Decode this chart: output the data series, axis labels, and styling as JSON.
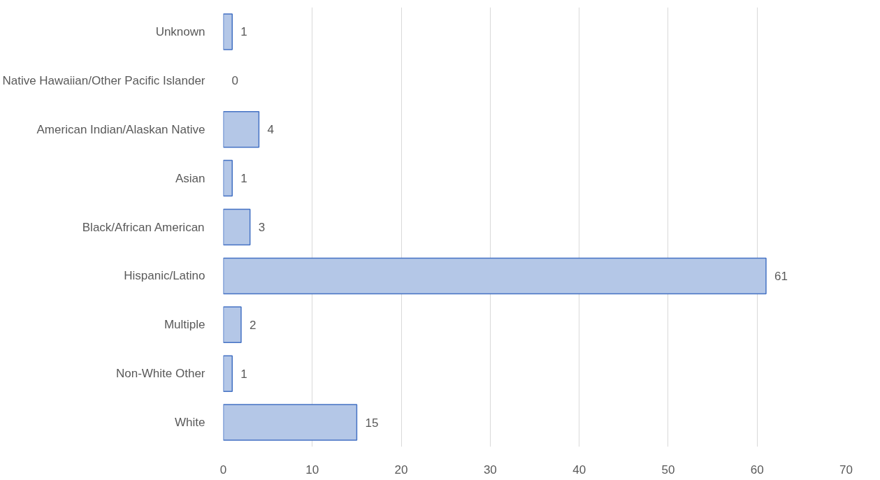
{
  "chart_data": {
    "type": "bar",
    "orientation": "horizontal",
    "categories": [
      "Unknown",
      "Native Hawaiian/Other Pacific Islander",
      "American Indian/Alaskan Native",
      "Asian",
      "Black/African American",
      "Hispanic/Latino",
      "Multiple",
      "Non-White Other",
      "White"
    ],
    "values": [
      1,
      0,
      4,
      1,
      3,
      61,
      2,
      1,
      15
    ],
    "color": "#b4c7e7",
    "xlim": [
      0,
      70
    ],
    "xticks": [
      0,
      10,
      20,
      30,
      40,
      50,
      60,
      70
    ],
    "grid": "x",
    "data_labels": true
  }
}
